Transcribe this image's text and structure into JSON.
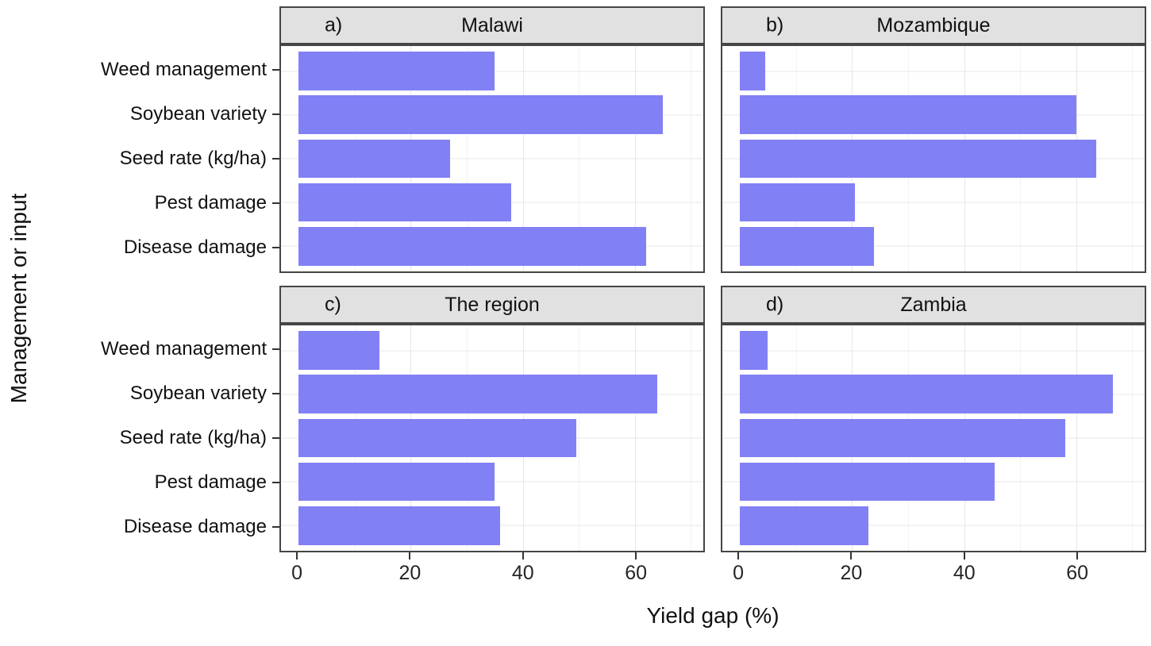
{
  "chart_data": {
    "type": "bar",
    "orientation": "horizontal",
    "facets": "2x2 grid",
    "xlabel": "Yield gap (%)",
    "ylabel": "Management or input",
    "categories": [
      "Weed management",
      "Soybean variety",
      "Seed rate (kg/ha)",
      "Pest damage",
      "Disease damage"
    ],
    "axis": {
      "min": -3.1,
      "max": 72.2,
      "ticks": [
        0,
        20,
        40,
        60
      ],
      "minor_ticks": [
        10,
        30,
        50,
        70
      ],
      "grid": "on",
      "unit": "%"
    },
    "panels": [
      {
        "tag": "a)",
        "title": "Malawi",
        "values": [
          35,
          65,
          27,
          38,
          62
        ]
      },
      {
        "tag": "b)",
        "title": "Mozambique",
        "values": [
          4.5,
          60,
          63.5,
          20.5,
          24
        ]
      },
      {
        "tag": "c)",
        "title": "The region",
        "values": [
          14.5,
          64,
          49.5,
          35,
          36
        ]
      },
      {
        "tag": "d)",
        "title": "Zambia",
        "values": [
          5,
          66.5,
          58,
          45.5,
          23
        ]
      }
    ],
    "colors": {
      "bar": "#8280f5",
      "strip_bg": "#e1e1e1",
      "panel_border": "#454545",
      "grid_major": "#e7e7e7",
      "grid_minor": "#f2f2f2",
      "text": "#111111"
    },
    "legend": "none"
  }
}
